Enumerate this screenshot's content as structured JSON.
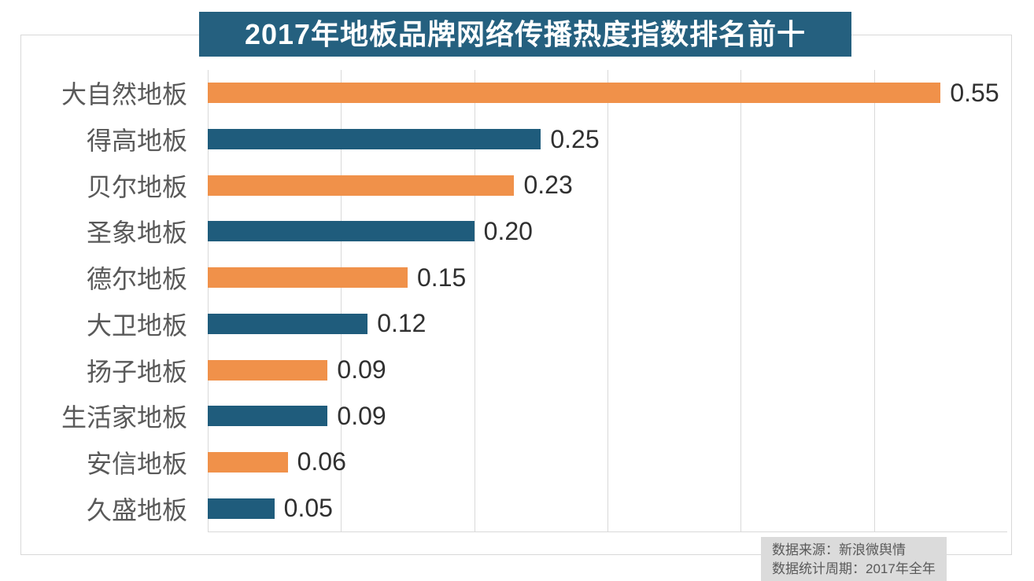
{
  "title": "2017年地板品牌网络传播热度指数排名前十",
  "source_note": {
    "line1": "数据来源：新浪微舆情",
    "line2": "数据统计周期：2017年全年"
  },
  "colors": {
    "title_bg": "#25607f",
    "bar_orange": "#f0914a",
    "bar_blue": "#1f5c7c",
    "grid": "#d9d9d9",
    "category_text": "#595959",
    "value_text": "#303030",
    "note_bg": "#dbdbdb",
    "note_text": "#595959"
  },
  "chart_data": {
    "type": "bar",
    "orientation": "horizontal",
    "title": "2017年地板品牌网络传播热度指数排名前十",
    "categories": [
      "大自然地板",
      "得高地板",
      "贝尔地板",
      "圣象地板",
      "德尔地板",
      "大卫地板",
      "扬子地板",
      "生活家地板",
      "安信地板",
      "久盛地板"
    ],
    "values": [
      0.55,
      0.25,
      0.23,
      0.2,
      0.15,
      0.12,
      0.09,
      0.09,
      0.06,
      0.05
    ],
    "value_labels": [
      "0.55",
      "0.25",
      "0.23",
      "0.20",
      "0.15",
      "0.12",
      "0.09",
      "0.09",
      "0.06",
      "0.05"
    ],
    "xlabel": "",
    "ylabel": "",
    "xlim": [
      0,
      0.6
    ],
    "gridline_step": 0.1,
    "grid": true,
    "legend": false,
    "bar_color_pattern": [
      "#f0914a",
      "#1f5c7c"
    ]
  }
}
